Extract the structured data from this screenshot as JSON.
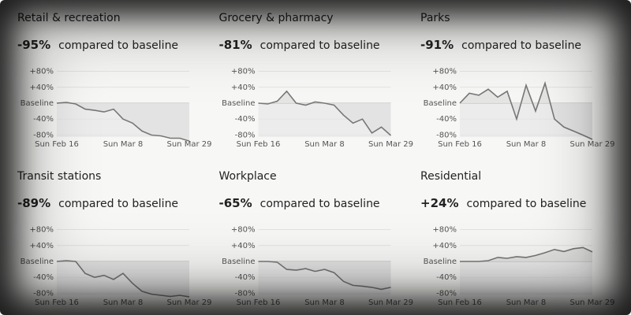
{
  "chart_data": [
    {
      "type": "line",
      "title": "Retail & recreation",
      "headline": "-95%",
      "subtitle": "compared to baseline",
      "categories": [
        "Sun Feb 16",
        null,
        null,
        null,
        null,
        null,
        null,
        "Sun Mar 8",
        null,
        null,
        null,
        null,
        null,
        null,
        "Sun Mar 29"
      ],
      "values": [
        0,
        2,
        -2,
        -15,
        -18,
        -22,
        -15,
        -40,
        -50,
        -70,
        -80,
        -82,
        -88,
        -88,
        -95
      ],
      "ylim": [
        -85,
        85
      ],
      "yticks": [
        {
          "value": 80,
          "label": "+80%"
        },
        {
          "value": 40,
          "label": "+40%"
        },
        {
          "value": 0,
          "label": "Baseline"
        },
        {
          "value": -40,
          "label": "-40%"
        },
        {
          "value": -80,
          "label": "-80%"
        }
      ],
      "color": "#777777",
      "fill": "#e2e2e2"
    },
    {
      "type": "line",
      "title": "Grocery & pharmacy",
      "headline": "-81%",
      "subtitle": "compared to baseline",
      "categories": [
        "Sun Feb 16",
        null,
        null,
        null,
        null,
        null,
        null,
        "Sun Mar 8",
        null,
        null,
        null,
        null,
        null,
        null,
        "Sun Mar 29"
      ],
      "values": [
        0,
        -2,
        5,
        30,
        0,
        -5,
        3,
        0,
        -5,
        -30,
        -50,
        -40,
        -75,
        -60,
        -81
      ],
      "ylim": [
        -85,
        85
      ],
      "yticks": [
        {
          "value": 80,
          "label": "+80%"
        },
        {
          "value": 40,
          "label": "+40%"
        },
        {
          "value": 0,
          "label": "Baseline"
        },
        {
          "value": -40,
          "label": "-40%"
        },
        {
          "value": -80,
          "label": "-80%"
        }
      ],
      "color": "#777777",
      "fill": "#e2e2e2"
    },
    {
      "type": "line",
      "title": "Parks",
      "headline": "-91%",
      "subtitle": "compared to baseline",
      "categories": [
        "Sun Feb 16",
        null,
        null,
        null,
        null,
        null,
        null,
        "Sun Mar 8",
        null,
        null,
        null,
        null,
        null,
        null,
        "Sun Mar 29"
      ],
      "values": [
        0,
        25,
        20,
        35,
        15,
        30,
        -40,
        45,
        -20,
        50,
        -40,
        -60,
        -70,
        -80,
        -91
      ],
      "ylim": [
        -85,
        85
      ],
      "yticks": [
        {
          "value": 80,
          "label": "+80%"
        },
        {
          "value": 40,
          "label": "+40%"
        },
        {
          "value": 0,
          "label": "Baseline"
        },
        {
          "value": -40,
          "label": "-40%"
        },
        {
          "value": -80,
          "label": "-80%"
        }
      ],
      "color": "#777777",
      "fill": "#e2e2e2"
    },
    {
      "type": "line",
      "title": "Transit stations",
      "headline": "-89%",
      "subtitle": "compared to baseline",
      "categories": [
        "Sun Feb 16",
        null,
        null,
        null,
        null,
        null,
        null,
        "Sun Mar 8",
        null,
        null,
        null,
        null,
        null,
        null,
        "Sun Mar 29"
      ],
      "values": [
        0,
        2,
        0,
        -30,
        -40,
        -35,
        -45,
        -30,
        -55,
        -75,
        -82,
        -85,
        -88,
        -85,
        -89
      ],
      "ylim": [
        -85,
        85
      ],
      "yticks": [
        {
          "value": 80,
          "label": "+80%"
        },
        {
          "value": 40,
          "label": "+40%"
        },
        {
          "value": 0,
          "label": "Baseline"
        },
        {
          "value": -40,
          "label": "-40%"
        },
        {
          "value": -80,
          "label": "-80%"
        }
      ],
      "color": "#777777",
      "fill": "#e2e2e2"
    },
    {
      "type": "line",
      "title": "Workplace",
      "headline": "-65%",
      "subtitle": "compared to baseline",
      "categories": [
        "Sun Feb 16",
        null,
        null,
        null,
        null,
        null,
        null,
        "Sun Mar 8",
        null,
        null,
        null,
        null,
        null,
        null,
        "Sun Mar 29"
      ],
      "values": [
        0,
        0,
        -2,
        -20,
        -22,
        -18,
        -25,
        -20,
        -28,
        -50,
        -60,
        -62,
        -65,
        -70,
        -65
      ],
      "ylim": [
        -85,
        85
      ],
      "yticks": [
        {
          "value": 80,
          "label": "+80%"
        },
        {
          "value": 40,
          "label": "+40%"
        },
        {
          "value": 0,
          "label": "Baseline"
        },
        {
          "value": -40,
          "label": "-40%"
        },
        {
          "value": -80,
          "label": "-80%"
        }
      ],
      "color": "#777777",
      "fill": "#e2e2e2"
    },
    {
      "type": "line",
      "title": "Residential",
      "headline": "+24%",
      "subtitle": "compared to baseline",
      "categories": [
        "Sun Feb 16",
        null,
        null,
        null,
        null,
        null,
        null,
        "Sun Mar 8",
        null,
        null,
        null,
        null,
        null,
        null,
        "Sun Mar 29"
      ],
      "values": [
        0,
        0,
        0,
        2,
        10,
        8,
        12,
        10,
        15,
        22,
        30,
        25,
        32,
        35,
        24
      ],
      "ylim": [
        -85,
        85
      ],
      "yticks": [
        {
          "value": 80,
          "label": "+80%"
        },
        {
          "value": 40,
          "label": "+40%"
        },
        {
          "value": 0,
          "label": "Baseline"
        },
        {
          "value": -40,
          "label": "-40%"
        },
        {
          "value": -80,
          "label": "-80%"
        }
      ],
      "color": "#777777",
      "fill": "#e2e2e2"
    }
  ]
}
